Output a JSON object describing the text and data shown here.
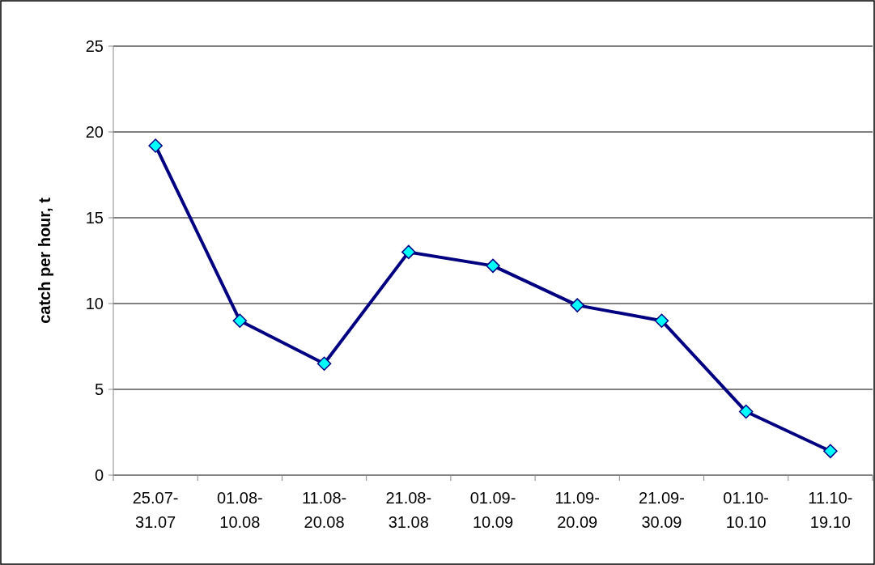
{
  "chart_data": {
    "type": "line",
    "ylabel": "catch per hour, t",
    "categories": [
      "25.07-\n31.07",
      "01.08-\n10.08",
      "11.08-\n20.08",
      "21.08-\n31.08",
      "01.09-\n10.09",
      "11.09-\n20.09",
      "21.09-\n30.09",
      "01.10-\n10.10",
      "11.10-\n19.10"
    ],
    "series": [
      {
        "color": "#000080",
        "values": [
          19.2,
          9.0,
          6.5,
          13.0,
          12.2,
          9.9,
          9.0,
          3.7,
          1.4
        ]
      }
    ],
    "ylim": [
      0,
      25
    ],
    "yticks": [
      0,
      5,
      10,
      15,
      20,
      25
    ],
    "grid": "y",
    "marker": "diamond",
    "line_style": "solid"
  }
}
